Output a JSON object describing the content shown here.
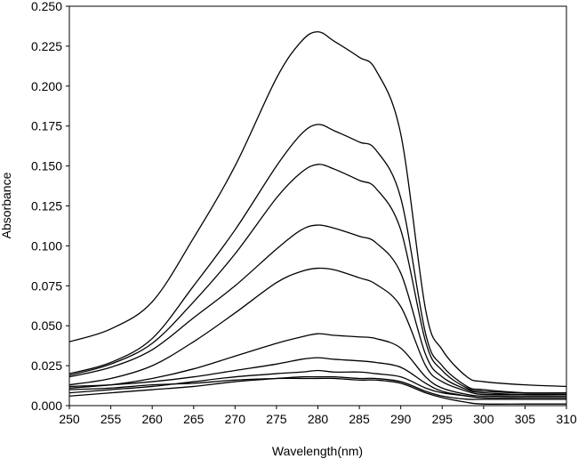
{
  "chart_data": {
    "type": "line",
    "title": "",
    "xlabel": "Wavelength(nm)",
    "ylabel": "Absorbance",
    "xlim": [
      250,
      310
    ],
    "ylim": [
      0,
      0.25
    ],
    "x_ticks": [
      "250",
      "255",
      "260",
      "265",
      "270",
      "275",
      "280",
      "285",
      "290",
      "295",
      "300",
      "305",
      "310"
    ],
    "y_ticks": [
      "0.000",
      "0.025",
      "0.050",
      "0.075",
      "0.100",
      "0.125",
      "0.150",
      "0.175",
      "0.200",
      "0.225",
      "0.250"
    ],
    "grid": false,
    "legend": "none",
    "line_color": "#000000",
    "series": [
      {
        "x": [
          250,
          255,
          260,
          265,
          270,
          275,
          278,
          280,
          282,
          285,
          287,
          290,
          293,
          295,
          298,
          300,
          305,
          310
        ],
        "y": [
          0.04,
          0.048,
          0.065,
          0.105,
          0.15,
          0.205,
          0.228,
          0.234,
          0.228,
          0.218,
          0.21,
          0.17,
          0.06,
          0.035,
          0.018,
          0.015,
          0.013,
          0.012
        ]
      },
      {
        "x": [
          250,
          255,
          260,
          265,
          270,
          275,
          278,
          280,
          282,
          285,
          287,
          290,
          293,
          295,
          298,
          300,
          305,
          310
        ],
        "y": [
          0.02,
          0.027,
          0.042,
          0.075,
          0.11,
          0.15,
          0.17,
          0.176,
          0.172,
          0.165,
          0.16,
          0.13,
          0.045,
          0.025,
          0.012,
          0.01,
          0.008,
          0.008
        ]
      },
      {
        "x": [
          250,
          255,
          260,
          265,
          270,
          275,
          278,
          280,
          282,
          285,
          287,
          290,
          293,
          295,
          298,
          300,
          305,
          310
        ],
        "y": [
          0.019,
          0.026,
          0.039,
          0.065,
          0.095,
          0.13,
          0.146,
          0.151,
          0.148,
          0.141,
          0.136,
          0.11,
          0.04,
          0.022,
          0.011,
          0.009,
          0.008,
          0.008
        ]
      },
      {
        "x": [
          250,
          255,
          260,
          265,
          270,
          275,
          278,
          280,
          282,
          285,
          287,
          290,
          293,
          295,
          298,
          300,
          305,
          310
        ],
        "y": [
          0.018,
          0.024,
          0.035,
          0.055,
          0.075,
          0.098,
          0.11,
          0.113,
          0.111,
          0.106,
          0.102,
          0.083,
          0.032,
          0.018,
          0.01,
          0.008,
          0.007,
          0.007
        ]
      },
      {
        "x": [
          250,
          255,
          260,
          265,
          270,
          275,
          278,
          280,
          282,
          285,
          287,
          290,
          293,
          295,
          298,
          300,
          305,
          310
        ],
        "y": [
          0.013,
          0.017,
          0.025,
          0.04,
          0.058,
          0.077,
          0.084,
          0.086,
          0.085,
          0.08,
          0.076,
          0.062,
          0.025,
          0.015,
          0.009,
          0.007,
          0.007,
          0.007
        ]
      },
      {
        "x": [
          250,
          255,
          260,
          265,
          270,
          275,
          278,
          280,
          282,
          285,
          287,
          290,
          293,
          295,
          298,
          300,
          305,
          310
        ],
        "y": [
          0.011,
          0.013,
          0.017,
          0.023,
          0.031,
          0.039,
          0.043,
          0.045,
          0.044,
          0.043,
          0.042,
          0.036,
          0.018,
          0.011,
          0.007,
          0.006,
          0.006,
          0.006
        ]
      },
      {
        "x": [
          250,
          255,
          260,
          265,
          270,
          275,
          278,
          280,
          282,
          285,
          287,
          290,
          293,
          295,
          298,
          300,
          305,
          310
        ],
        "y": [
          0.012,
          0.013,
          0.015,
          0.018,
          0.022,
          0.026,
          0.029,
          0.03,
          0.029,
          0.028,
          0.027,
          0.024,
          0.014,
          0.009,
          0.006,
          0.005,
          0.005,
          0.005
        ]
      },
      {
        "x": [
          250,
          255,
          260,
          265,
          270,
          275,
          278,
          280,
          282,
          285,
          287,
          290,
          293,
          295,
          298,
          300,
          305,
          310
        ],
        "y": [
          0.008,
          0.01,
          0.012,
          0.015,
          0.018,
          0.02,
          0.021,
          0.022,
          0.021,
          0.021,
          0.02,
          0.018,
          0.011,
          0.008,
          0.006,
          0.005,
          0.005,
          0.005
        ]
      },
      {
        "x": [
          250,
          255,
          260,
          265,
          270,
          275,
          278,
          280,
          282,
          285,
          287,
          290,
          293,
          295,
          298,
          300,
          305,
          310
        ],
        "y": [
          0.006,
          0.008,
          0.01,
          0.012,
          0.015,
          0.017,
          0.018,
          0.018,
          0.018,
          0.017,
          0.017,
          0.015,
          0.009,
          0.006,
          0.004,
          0.004,
          0.004,
          0.004
        ]
      },
      {
        "x": [
          250,
          255,
          260,
          265,
          270,
          275,
          278,
          280,
          282,
          285,
          287,
          290,
          293,
          295,
          298,
          300,
          305,
          310
        ],
        "y": [
          0.01,
          0.011,
          0.013,
          0.014,
          0.016,
          0.017,
          0.017,
          0.017,
          0.017,
          0.016,
          0.016,
          0.014,
          0.008,
          0.005,
          0.002,
          0.001,
          0.001,
          0.001
        ]
      }
    ]
  }
}
